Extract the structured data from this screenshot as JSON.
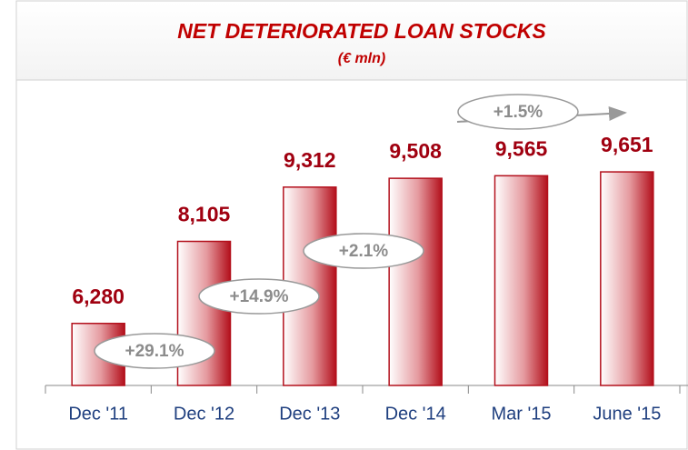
{
  "chart_data": {
    "type": "bar",
    "title": "NET DETERIORATED LOAN STOCKS",
    "subtitle": "(€ mln)",
    "categories": [
      "Dec '11",
      "Dec '12",
      "Dec '13",
      "Dec '14",
      "Mar '15",
      "June '15"
    ],
    "values": [
      6280,
      8105,
      9312,
      9508,
      9565,
      9651
    ],
    "value_labels": [
      "6,280",
      "8,105",
      "9,312",
      "9,508",
      "9,565",
      "9,651"
    ],
    "color": "#b3101c",
    "ylim": [
      4900,
      11250
    ],
    "annotations": [
      "+29.1%",
      "+14.9%",
      "+2.1%",
      "+1.5%"
    ]
  }
}
